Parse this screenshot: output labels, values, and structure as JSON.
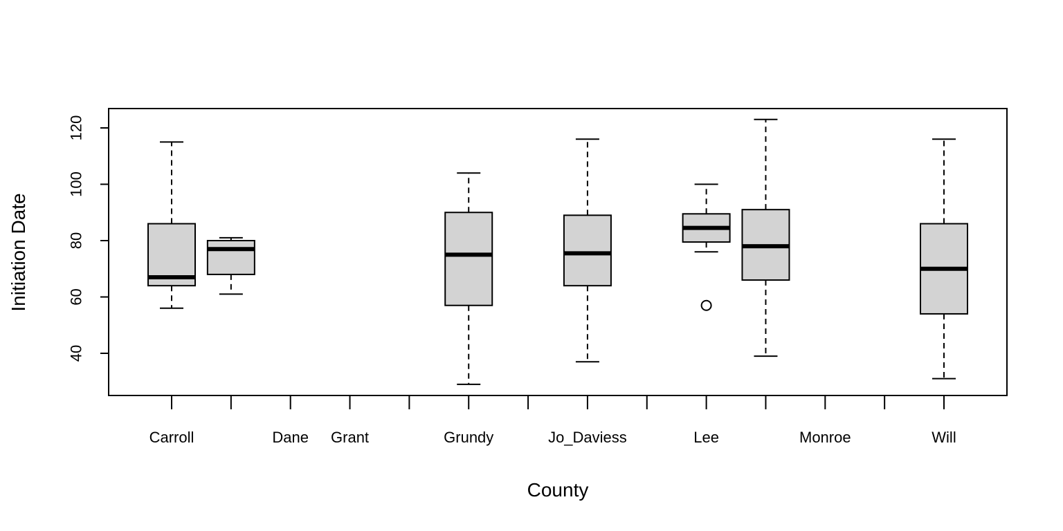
{
  "chart_data": {
    "type": "boxplot",
    "title": "",
    "xlabel": "County",
    "ylabel": "Initiation Date",
    "ylim": [
      25,
      127
    ],
    "yticks": [
      40,
      60,
      80,
      100,
      120
    ],
    "grid": false,
    "legend": "none",
    "box_fill": "#d3d3d3",
    "categories": [
      {
        "label": "Carroll",
        "stats": {
          "min": 56,
          "q1": 64,
          "median": 67,
          "q3": 86,
          "max": 115
        },
        "outliers": []
      },
      {
        "label": "",
        "stats": {
          "min": 61,
          "q1": 68,
          "median": 77,
          "q3": 80,
          "max": 81
        },
        "outliers": []
      },
      {
        "label": "Dane",
        "stats": null,
        "outliers": []
      },
      {
        "label": "Grant",
        "stats": null,
        "outliers": []
      },
      {
        "label": "",
        "stats": null,
        "outliers": []
      },
      {
        "label": "Grundy",
        "stats": {
          "min": 29,
          "q1": 57,
          "median": 75,
          "q3": 90,
          "max": 104
        },
        "outliers": []
      },
      {
        "label": "",
        "stats": null,
        "outliers": []
      },
      {
        "label": "Jo_Daviess",
        "stats": {
          "min": 37,
          "q1": 64,
          "median": 75.5,
          "q3": 89,
          "max": 116
        },
        "outliers": []
      },
      {
        "label": "",
        "stats": null,
        "outliers": []
      },
      {
        "label": "Lee",
        "stats": {
          "min": 76,
          "q1": 79.5,
          "median": 84.5,
          "q3": 89.5,
          "max": 100
        },
        "outliers": [
          57
        ]
      },
      {
        "label": "",
        "stats": {
          "min": 39,
          "q1": 66,
          "median": 78,
          "q3": 91,
          "max": 123
        },
        "outliers": []
      },
      {
        "label": "Monroe",
        "stats": null,
        "outliers": []
      },
      {
        "label": "",
        "stats": null,
        "outliers": []
      },
      {
        "label": "Will",
        "stats": {
          "min": 31,
          "q1": 54,
          "median": 70,
          "q3": 86,
          "max": 116
        },
        "outliers": []
      }
    ]
  }
}
